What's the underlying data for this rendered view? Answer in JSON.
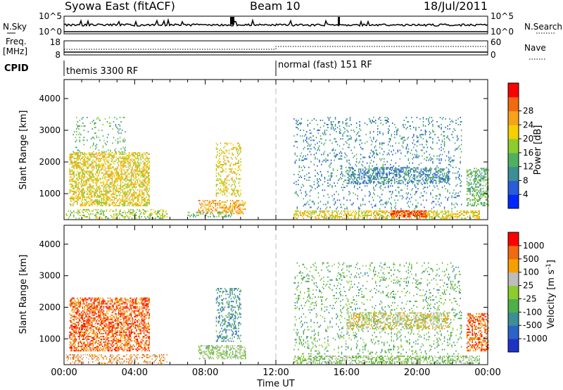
{
  "header": {
    "station": "Syowa East (fitACF)",
    "beam": "Beam 10",
    "date": "18/Jul/2011"
  },
  "noise_panel": {
    "left_label": "N.Sky",
    "right_label": "N.Search",
    "left_ticks": [
      "10^5",
      "10^0"
    ],
    "right_ticks": [
      "10^5",
      "10^0"
    ]
  },
  "freq_panel": {
    "left_label_1": "Freq.",
    "left_label_2": "[MHz]",
    "right_label": "Nave",
    "left_ticks": [
      "18",
      "8"
    ],
    "right_ticks": [
      "60",
      "0"
    ]
  },
  "cpid": {
    "label": "CPID",
    "segments": [
      {
        "text": "themis 3300 RF",
        "start_hour": 0
      },
      {
        "text": "normal (fast) 151 RF",
        "start_hour": 12
      }
    ]
  },
  "x_axis": {
    "label": "Time UT",
    "ticks": [
      "00:00",
      "04:00",
      "08:00",
      "12:00",
      "16:00",
      "20:00",
      "00:00"
    ]
  },
  "chart_data": [
    {
      "type": "heatmap",
      "title": "",
      "xlabel": "Time UT",
      "ylabel": "Slant Range [km]",
      "xlim": [
        0,
        24
      ],
      "ylim": [
        180,
        4600
      ],
      "yticks": [
        1000,
        2000,
        3000,
        4000
      ],
      "colorbar": {
        "label": "Power [dB]",
        "tick_labels": [
          "4",
          "8",
          "12",
          "16",
          "20",
          "24",
          "28"
        ],
        "colors": [
          "#0028ff",
          "#2a5bd8",
          "#3c8f94",
          "#4fb060",
          "#8ccc2e",
          "#f5d000",
          "#f7a21a",
          "#f26a10",
          "#ff0000"
        ]
      },
      "regions": [
        {
          "t": [
            0.3,
            4.8
          ],
          "r": [
            600,
            2300
          ],
          "level": 5,
          "density": 0.55
        },
        {
          "t": [
            0.1,
            5.8
          ],
          "r": [
            200,
            500
          ],
          "level": 4,
          "density": 0.35
        },
        {
          "t": [
            0.5,
            3.5
          ],
          "r": [
            2300,
            3400
          ],
          "level": 3,
          "density": 0.1
        },
        {
          "t": [
            8.6,
            10.0
          ],
          "r": [
            900,
            2600
          ],
          "level": 5,
          "density": 0.3
        },
        {
          "t": [
            7.6,
            10.3
          ],
          "r": [
            350,
            800
          ],
          "level": 6,
          "density": 0.45
        },
        {
          "t": [
            7.0,
            9.5
          ],
          "r": [
            250,
            400
          ],
          "level": 3,
          "density": 0.3
        },
        {
          "t": [
            13.0,
            23.5
          ],
          "r": [
            200,
            450
          ],
          "level": 5,
          "density": 0.55
        },
        {
          "t": [
            13.0,
            22.5
          ],
          "r": [
            500,
            3400
          ],
          "level": 2,
          "density": 0.12
        },
        {
          "t": [
            16.0,
            21.8
          ],
          "r": [
            1300,
            1800
          ],
          "level": 2,
          "density": 0.45
        },
        {
          "t": [
            22.8,
            24.0
          ],
          "r": [
            600,
            1800
          ],
          "level": 3,
          "density": 0.45
        },
        {
          "t": [
            18.5,
            20.5
          ],
          "r": [
            250,
            450
          ],
          "level": 8,
          "density": 0.5
        }
      ]
    },
    {
      "type": "heatmap",
      "title": "",
      "xlabel": "Time UT",
      "ylabel": "Slant Range [km]",
      "xlim": [
        0,
        24
      ],
      "ylim": [
        180,
        4600
      ],
      "yticks": [
        1000,
        2000,
        3000,
        4000
      ],
      "colorbar": {
        "label": "Velocity [m s^-1]",
        "tick_labels": [
          "1000",
          "500",
          "100",
          "25",
          "-25",
          "-100",
          "-500",
          "-1000"
        ],
        "colors": [
          "#1e32c8",
          "#2a64c8",
          "#3c8f94",
          "#4fb04a",
          "#8ccc2e",
          "#bdbdbd",
          "#f5a000",
          "#f06a10",
          "#ff0000"
        ]
      },
      "regions": [
        {
          "t": [
            0.3,
            4.8
          ],
          "r": [
            600,
            2300
          ],
          "level": 7,
          "density": 0.55
        },
        {
          "t": [
            0.1,
            5.8
          ],
          "r": [
            200,
            500
          ],
          "level": 6,
          "density": 0.3
        },
        {
          "t": [
            8.6,
            10.0
          ],
          "r": [
            900,
            2600
          ],
          "level": 2,
          "density": 0.3
        },
        {
          "t": [
            7.6,
            10.3
          ],
          "r": [
            350,
            800
          ],
          "level": 4,
          "density": 0.45
        },
        {
          "t": [
            13.0,
            23.5
          ],
          "r": [
            200,
            450
          ],
          "level": 4,
          "density": 0.5
        },
        {
          "t": [
            13.0,
            22.5
          ],
          "r": [
            500,
            3400
          ],
          "level": 3,
          "density": 0.12
        },
        {
          "t": [
            16.0,
            21.8
          ],
          "r": [
            1300,
            1800
          ],
          "level": 5,
          "density": 0.45
        },
        {
          "t": [
            22.8,
            24.0
          ],
          "r": [
            600,
            1800
          ],
          "level": 7,
          "density": 0.45
        }
      ]
    }
  ]
}
